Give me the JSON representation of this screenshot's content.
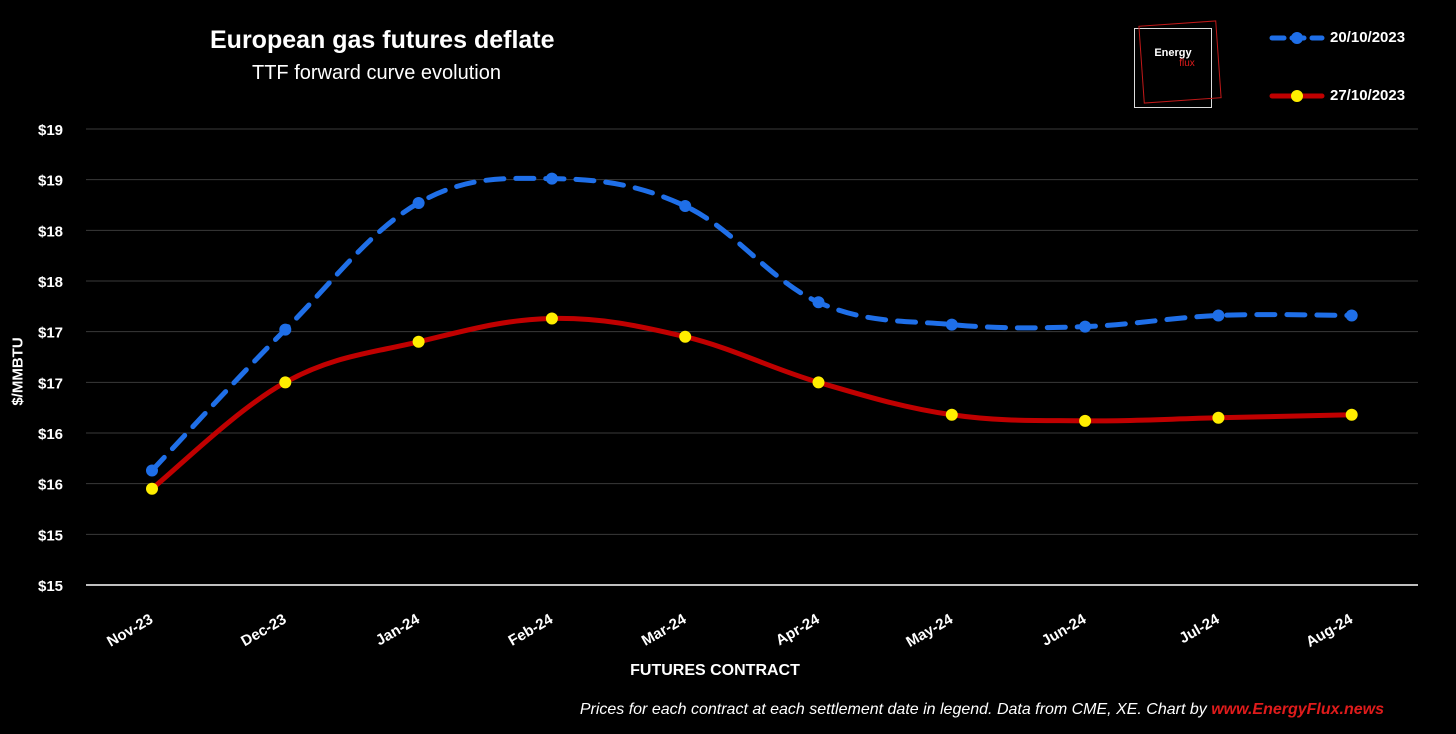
{
  "header": {
    "title": "European gas futures deflate",
    "subtitle": "TTF forward curve evolution"
  },
  "logo": {
    "word1": "Energy",
    "word2": "flux"
  },
  "footer": {
    "note": "Prices for each contract at each settlement date in legend. Data from CME, XE. Chart by ",
    "link": "www.EnergyFlux.news"
  },
  "colors": {
    "background": "#000000",
    "series1": "#1f6fe8",
    "series2": "#c00000",
    "marker2": "#ffee00",
    "brand_red": "#e01b1b"
  },
  "chart_data": {
    "type": "line",
    "title": "European gas futures deflate",
    "subtitle": "TTF forward curve evolution",
    "xlabel": "FUTURES CONTRACT",
    "ylabel": "$/MMBTU",
    "categories": [
      "Nov-23",
      "Dec-23",
      "Jan-24",
      "Feb-24",
      "Mar-24",
      "Apr-24",
      "May-24",
      "Jun-24",
      "Jul-24",
      "Aug-24"
    ],
    "ylim": [
      14.5,
      19
    ],
    "yticks": [
      14.5,
      15,
      15.5,
      16,
      16.5,
      17,
      17.5,
      18,
      18.5,
      19
    ],
    "ytick_labels": [
      "$15",
      "$15",
      "$16",
      "$16",
      "$17",
      "$17",
      "$18",
      "$18",
      "$19",
      "$19"
    ],
    "grid": true,
    "legend": "top-right",
    "series": [
      {
        "name": "20/10/2023",
        "style": "dashed",
        "values": [
          15.63,
          17.02,
          18.27,
          18.51,
          18.24,
          17.29,
          17.07,
          17.05,
          17.16,
          17.16
        ]
      },
      {
        "name": "27/10/2023",
        "style": "solid",
        "values": [
          15.45,
          16.5,
          16.9,
          17.13,
          16.95,
          16.5,
          16.18,
          16.12,
          16.15,
          16.18
        ]
      }
    ]
  }
}
